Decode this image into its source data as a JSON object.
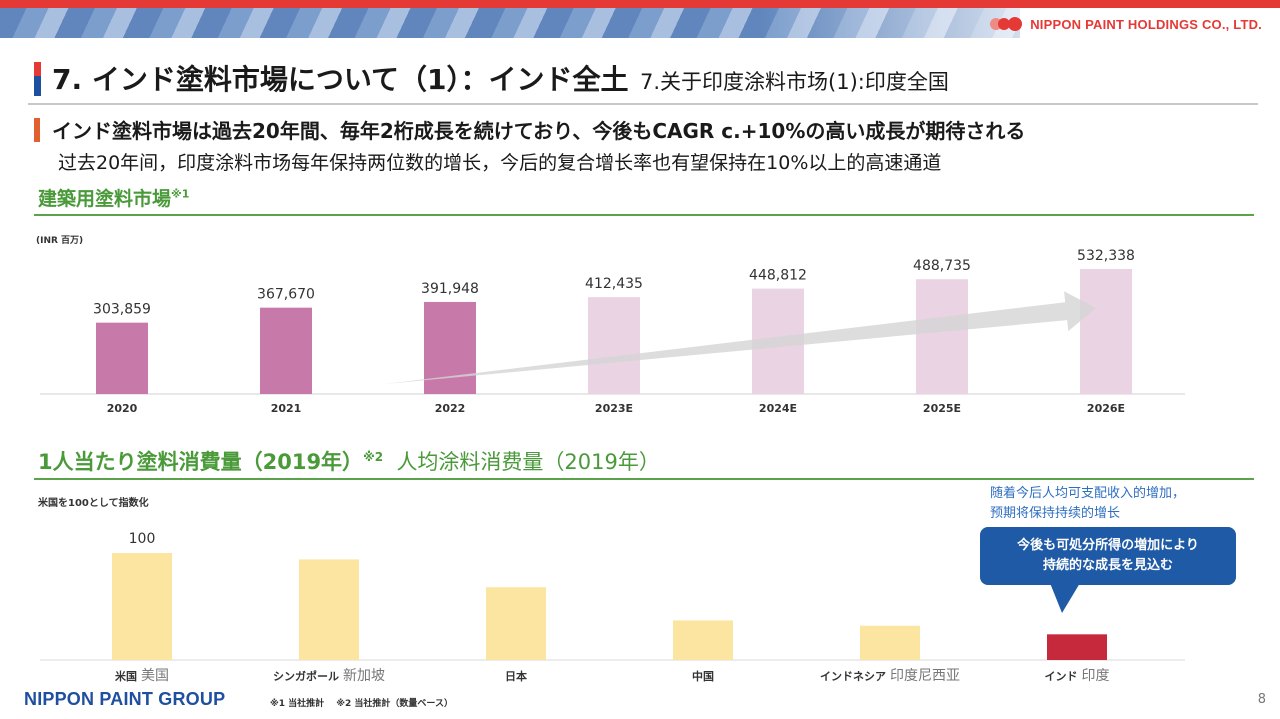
{
  "header": {
    "brand": "NIPPON PAINT HOLDINGS CO., LTD.",
    "title_jp": "7. インド塗料市場について（1）：インド全土",
    "title_cn": "7.关于印度涂料市场(1):印度全国",
    "lead_jp": "インド塗料市場は過去20年間、毎年2桁成長を続けており、今後もCAGR c.+10%の高い成長が期待される",
    "lead_cn": "过去20年间，印度涂料市场每年保持两位数的增长，今后的复合增长率也有望保持在10%以上的高速通道"
  },
  "section1": {
    "title": "建築用塗料市場",
    "title_mark": "※1",
    "unit": "(INR 百万)"
  },
  "section2": {
    "title_jp": "1人当たり塗料消費量（2019年）",
    "title_mark": "※2",
    "title_cn": "人均涂料消费量（2019年）",
    "index_note": "米国を100として指数化",
    "note_cn_1": "随着今后人均可支配收入的增加，",
    "note_cn_2": "预期将保持持续的增长",
    "callout_1": "今後も可処分所得の増加により",
    "callout_2": "持続的な成長を見込む"
  },
  "footer": {
    "brand": "NIPPON PAINT GROUP",
    "footnote": "※1 当社推計　 ※2 当社推計（数量ベース）",
    "page": "8"
  },
  "colors": {
    "actual_bar": "#c77aaa",
    "estimate_bar": "#ead3e3",
    "consumption_bar": "#fbe5a0",
    "india_bar": "#c6283c",
    "arrow": "#d4d4d4",
    "accent_green": "#4a9a3a",
    "accent_blue": "#1f5aa6"
  },
  "chart_data": [
    {
      "type": "bar",
      "title": "建築用塗料市場",
      "ylabel": "(INR 百万)",
      "categories": [
        "2020",
        "2021",
        "2022",
        "2023E",
        "2024E",
        "2025E",
        "2026E"
      ],
      "values": [
        303859,
        367670,
        391948,
        412435,
        448812,
        488735,
        532338
      ],
      "labels": [
        "303,859",
        "367,670",
        "391,948",
        "412,435",
        "448,812",
        "488,735",
        "532,338"
      ],
      "estimate": [
        false,
        false,
        false,
        true,
        true,
        true,
        true
      ],
      "grid": false,
      "annotation": "growth-arrow"
    },
    {
      "type": "bar",
      "title": "1人当たり塗料消費量（2019年）",
      "ylabel": "米国を100として指数化",
      "categories": [
        "米国",
        "シンガポール",
        "日本",
        "中国",
        "インドネシア",
        "インド"
      ],
      "categories_cn": [
        "美国",
        "新加坡",
        "",
        "",
        "印度尼西亚",
        "印度"
      ],
      "values": [
        100,
        94,
        68,
        37,
        32,
        24
      ],
      "labels": [
        "100",
        "",
        "",
        "",
        "",
        ""
      ],
      "highlight": "インド",
      "grid": false
    }
  ]
}
